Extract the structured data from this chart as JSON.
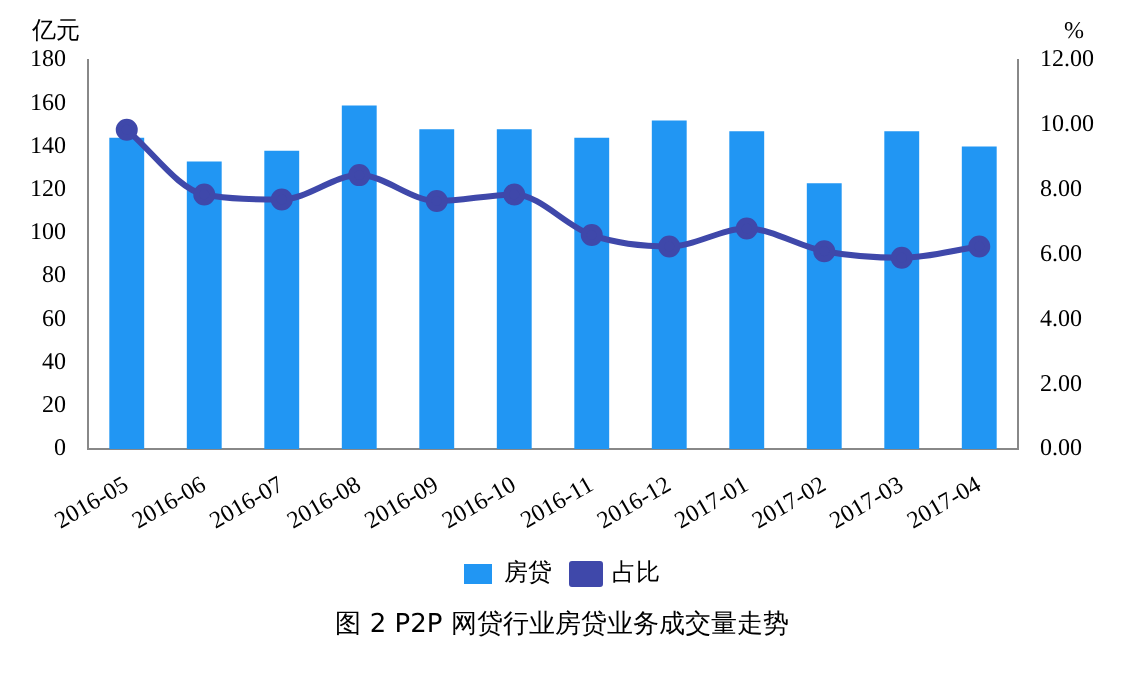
{
  "chart_data": {
    "type": "bar",
    "title": "图 2 P2P 网贷行业房贷业务成交量走势",
    "ylabel": "亿元",
    "y2label": "%",
    "categories": [
      "2016-05",
      "2016-06",
      "2016-07",
      "2016-08",
      "2016-09",
      "2016-10",
      "2016-11",
      "2016-12",
      "2017-01",
      "2017-02",
      "2017-03",
      "2017-04"
    ],
    "series": [
      {
        "name": "房贷",
        "color": "#2196f3",
        "values": [
          144,
          133,
          138,
          159,
          148,
          148,
          144,
          152,
          147,
          123,
          147,
          140
        ]
      },
      {
        "name": "占比",
        "type": "line",
        "axis": "y2",
        "color": "#3f48aa",
        "marker": "circle",
        "values": [
          9.85,
          7.85,
          7.7,
          8.45,
          7.65,
          7.85,
          6.6,
          6.25,
          6.8,
          6.1,
          5.9,
          6.25
        ]
      }
    ],
    "ylim": [
      0,
      180
    ],
    "yticks": [
      0,
      20,
      40,
      60,
      80,
      100,
      120,
      140,
      160,
      180
    ],
    "y2lim": [
      0,
      12
    ],
    "y2ticks": [
      {
        "value": 0,
        "label": "0.00"
      },
      {
        "value": 2,
        "label": "2.00"
      },
      {
        "value": 4,
        "label": "4.00"
      },
      {
        "value": 6,
        "label": "6.00"
      },
      {
        "value": 8,
        "label": "8.00"
      },
      {
        "value": 10,
        "label": "10.00"
      },
      {
        "value": 12,
        "label": "12.00"
      }
    ],
    "grid": false,
    "legend": "bottom"
  }
}
